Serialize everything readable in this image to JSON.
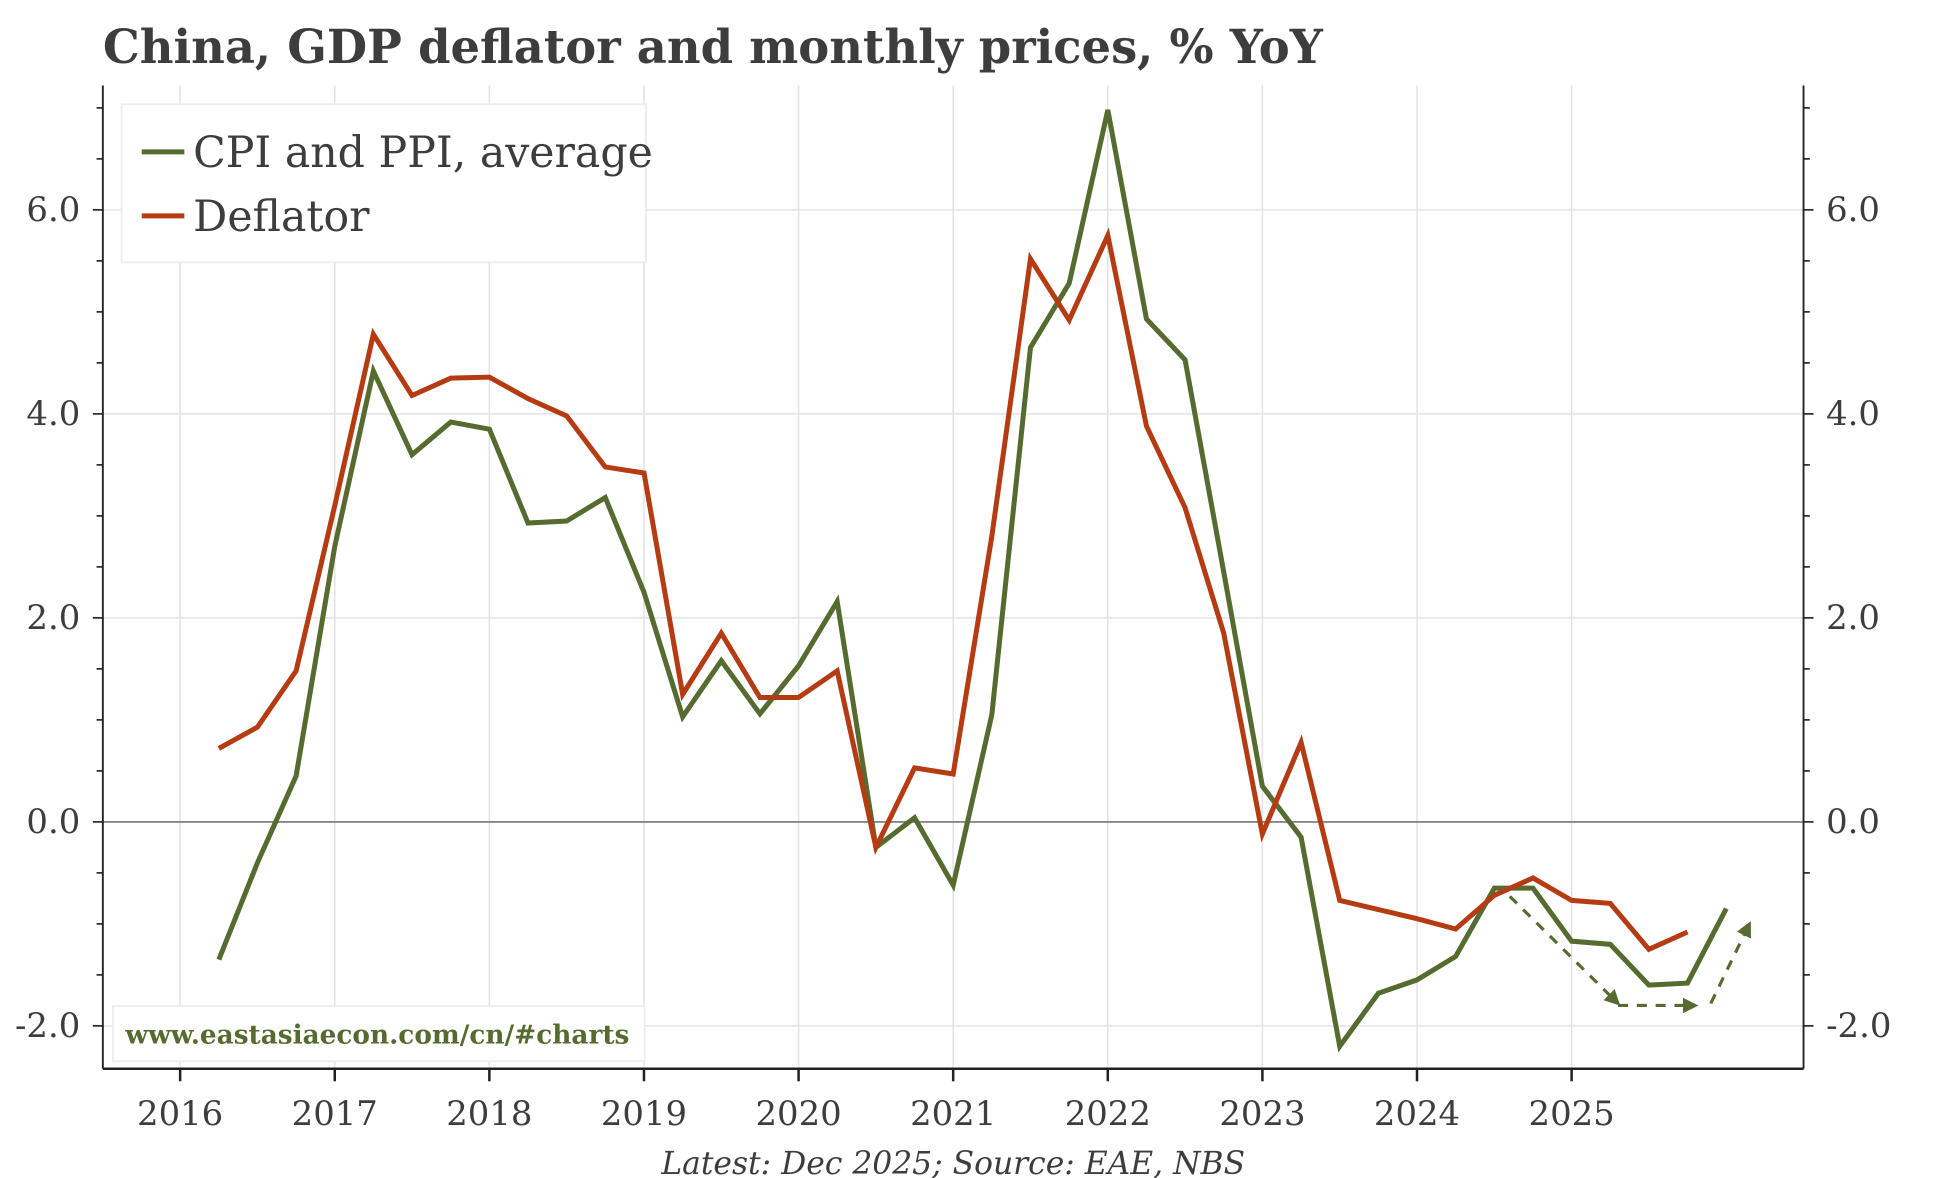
{
  "chart_data": {
    "type": "line",
    "title": "China, GDP deflator and monthly prices, % YoY",
    "source": "Latest: Dec 2025; Source: EAE, NBS",
    "watermark": "www.eastasiaecon.com/cn/#charts",
    "xlabel": "",
    "ylabel": "",
    "xlim": [
      2015.5,
      2026.5
    ],
    "ylim": [
      -2.42,
      7.22
    ],
    "x_ticks": [
      2016,
      2017,
      2018,
      2019,
      2020,
      2021,
      2022,
      2023,
      2024,
      2025
    ],
    "x_tick_labels": [
      "2016",
      "2017",
      "2018",
      "2019",
      "2020",
      "2021",
      "2022",
      "2023",
      "2024",
      "2025"
    ],
    "y_ticks": [
      -2,
      0,
      2,
      4,
      6
    ],
    "y_tick_labels": [
      "-2.0",
      "0.0",
      "2.0",
      "4.0",
      "6.0"
    ],
    "y_minor_step": 0.5,
    "grid": true,
    "dual_y_axis_mirrored": true,
    "legend_position": "top-left",
    "colors": {
      "cpi_ppi": "#566b2f",
      "deflator": "#b53c12",
      "zero_line": "#888888",
      "grid": "#e3e3e3",
      "text": "#3d3d3d"
    },
    "series": [
      {
        "name": "CPI and PPI, average",
        "x": [
          2016.25,
          2016.5,
          2016.75,
          2017.0,
          2017.25,
          2017.5,
          2017.75,
          2018.0,
          2018.25,
          2018.5,
          2018.75,
          2019.0,
          2019.25,
          2019.5,
          2019.75,
          2020.0,
          2020.25,
          2020.5,
          2020.75,
          2021.0,
          2021.25,
          2021.5,
          2021.75,
          2022.0,
          2022.25,
          2022.5,
          2022.75,
          2023.0,
          2023.25,
          2023.5,
          2023.75,
          2024.0,
          2024.25,
          2024.5,
          2024.75,
          2025.0,
          2025.25,
          2025.5,
          2025.75,
          2026.0
        ],
        "values": [
          -1.35,
          -0.4,
          0.45,
          2.7,
          4.42,
          3.6,
          3.92,
          3.85,
          2.93,
          2.95,
          3.18,
          2.25,
          1.03,
          1.58,
          1.06,
          1.53,
          2.16,
          -0.25,
          0.04,
          -0.62,
          1.05,
          4.65,
          5.28,
          6.98,
          4.93,
          4.53,
          2.45,
          0.35,
          -0.15,
          -2.2,
          -1.68,
          -1.55,
          -1.32,
          -0.65,
          -0.65,
          -1.17,
          -1.2,
          -1.6,
          -1.58,
          -0.85
        ]
      },
      {
        "name": "Deflator",
        "x": [
          2016.25,
          2016.5,
          2016.75,
          2017.0,
          2017.25,
          2017.5,
          2017.75,
          2018.0,
          2018.25,
          2018.5,
          2018.75,
          2019.0,
          2019.25,
          2019.5,
          2019.75,
          2020.0,
          2020.25,
          2020.5,
          2020.75,
          2021.0,
          2021.25,
          2021.5,
          2021.75,
          2022.0,
          2022.25,
          2022.5,
          2022.75,
          2023.0,
          2023.25,
          2023.5,
          2023.75,
          2024.0,
          2024.25,
          2024.5,
          2024.75,
          2025.0,
          2025.25,
          2025.5,
          2025.75
        ],
        "values": [
          0.72,
          0.93,
          1.48,
          3.1,
          4.78,
          4.18,
          4.35,
          4.36,
          4.15,
          3.98,
          3.48,
          3.42,
          1.25,
          1.85,
          1.22,
          1.22,
          1.48,
          -0.25,
          0.53,
          0.47,
          2.8,
          5.52,
          4.92,
          5.75,
          3.88,
          3.08,
          1.85,
          -0.12,
          0.78,
          -0.77,
          -0.86,
          -0.95,
          -1.05,
          -0.72,
          -0.55,
          -0.77,
          -0.8,
          -1.25,
          -1.08
        ]
      }
    ],
    "annotations": [
      {
        "type": "dashed-arrow",
        "from": [
          2024.6,
          -0.73
        ],
        "to": [
          2025.3,
          -1.78
        ]
      },
      {
        "type": "dashed-arrow",
        "from": [
          2025.3,
          -1.8
        ],
        "to": [
          2025.8,
          -1.8
        ]
      },
      {
        "type": "dashed-arrow",
        "from": [
          2025.9,
          -1.78
        ],
        "to": [
          2026.15,
          -1.0
        ]
      }
    ]
  }
}
